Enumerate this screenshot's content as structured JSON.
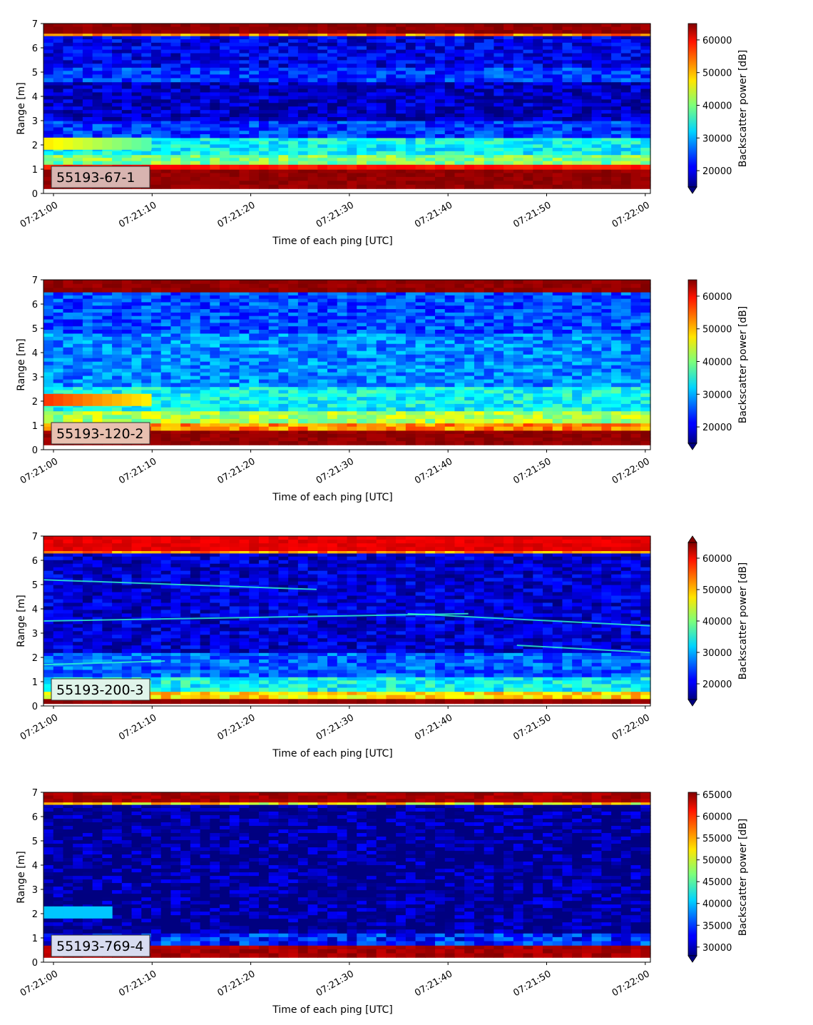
{
  "figure": {
    "panel_count": 4
  },
  "chart_data": [
    {
      "type": "heatmap",
      "id_label": "55193-67-1",
      "label_box_color": "#d8b4b0",
      "xlabel": "Time of each ping [UTC]",
      "ylabel": "Range [m]",
      "x_range": [
        "07:20:59",
        "07:22:00.5"
      ],
      "x_ticks": [
        "07:21:00",
        "07:21:10",
        "07:21:20",
        "07:21:30",
        "07:21:40",
        "07:21:50",
        "07:22:00"
      ],
      "ylim": [
        0,
        7
      ],
      "y_ticks": [
        "0",
        "1",
        "2",
        "3",
        "4",
        "5",
        "6",
        "7"
      ],
      "colorbar": {
        "label": "Backscatter power [dB]",
        "vmin": 15000,
        "vmax": 65000,
        "ticks": [
          "20000",
          "30000",
          "40000",
          "50000",
          "60000"
        ],
        "tick_values": [
          20000,
          30000,
          40000,
          50000,
          60000
        ],
        "extend": "min",
        "colormap": "jet"
      },
      "range_profile": [
        {
          "range": [
            0.0,
            0.2
          ],
          "value": "#ffffff"
        },
        {
          "range": [
            0.2,
            1.0
          ],
          "value": 64000
        },
        {
          "range": [
            1.0,
            1.2
          ],
          "value": 58000
        },
        {
          "range": [
            1.2,
            1.6
          ],
          "value": 40000
        },
        {
          "range": [
            1.6,
            2.3
          ],
          "value": 34000
        },
        {
          "range": [
            2.3,
            3.0
          ],
          "value": 24000
        },
        {
          "range": [
            3.0,
            4.6
          ],
          "value": 18000
        },
        {
          "range": [
            4.6,
            5.2
          ],
          "value": 24000
        },
        {
          "range": [
            5.2,
            6.5
          ],
          "value": 20000
        },
        {
          "range": [
            6.5,
            6.6
          ],
          "value": 52000
        },
        {
          "range": [
            6.6,
            7.0
          ],
          "value": 64000
        }
      ],
      "features": [
        "Strong echo band near 2 m from 07:21:00 to about 07:21:10"
      ]
    },
    {
      "type": "heatmap",
      "id_label": "55193-120-2",
      "label_box_color": "#e8c0b0",
      "xlabel": "Time of each ping [UTC]",
      "ylabel": "Range [m]",
      "x_range": [
        "07:20:59",
        "07:22:00.5"
      ],
      "x_ticks": [
        "07:21:00",
        "07:21:10",
        "07:21:20",
        "07:21:30",
        "07:21:40",
        "07:21:50",
        "07:22:00"
      ],
      "ylim": [
        0,
        7
      ],
      "y_ticks": [
        "0",
        "1",
        "2",
        "3",
        "4",
        "5",
        "6",
        "7"
      ],
      "colorbar": {
        "label": "Backscatter power [dB]",
        "vmin": 15000,
        "vmax": 65000,
        "ticks": [
          "20000",
          "30000",
          "40000",
          "50000",
          "60000"
        ],
        "tick_values": [
          20000,
          30000,
          40000,
          50000,
          60000
        ],
        "extend": "min",
        "colormap": "jet"
      },
      "range_profile": [
        {
          "range": [
            0.0,
            0.2
          ],
          "value": "#ffffff"
        },
        {
          "range": [
            0.2,
            0.8
          ],
          "value": 64000
        },
        {
          "range": [
            0.8,
            1.1
          ],
          "value": 52000
        },
        {
          "range": [
            1.1,
            1.6
          ],
          "value": 42000
        },
        {
          "range": [
            1.6,
            2.6
          ],
          "value": 34000
        },
        {
          "range": [
            2.6,
            4.8
          ],
          "value": 28000
        },
        {
          "range": [
            4.8,
            6.5
          ],
          "value": 25000
        },
        {
          "range": [
            6.5,
            7.0
          ],
          "value": 64000
        }
      ],
      "features": [
        "Strong echo band near 2 m from 07:21:00 to about 07:21:10"
      ]
    },
    {
      "type": "heatmap",
      "id_label": "55193-200-3",
      "label_box_color": "#e0f4ea",
      "xlabel": "Time of each ping [UTC]",
      "ylabel": "Range [m]",
      "x_range": [
        "07:20:59",
        "07:22:00.5"
      ],
      "x_ticks": [
        "07:21:00",
        "07:21:10",
        "07:21:20",
        "07:21:30",
        "07:21:40",
        "07:21:50",
        "07:22:00"
      ],
      "ylim": [
        0,
        7
      ],
      "y_ticks": [
        "0",
        "1",
        "2",
        "3",
        "4",
        "5",
        "6",
        "7"
      ],
      "colorbar": {
        "label": "Backscatter power [dB]",
        "vmin": 15000,
        "vmax": 65000,
        "ticks": [
          "20000",
          "30000",
          "40000",
          "50000",
          "60000"
        ],
        "tick_values": [
          20000,
          30000,
          40000,
          50000,
          60000
        ],
        "extend": "both",
        "colormap": "jet"
      },
      "range_profile": [
        {
          "range": [
            0.0,
            0.1
          ],
          "value": "#ffffff"
        },
        {
          "range": [
            0.1,
            0.3
          ],
          "value": 64000
        },
        {
          "range": [
            0.3,
            0.6
          ],
          "value": 48000
        },
        {
          "range": [
            0.6,
            1.2
          ],
          "value": 34000
        },
        {
          "range": [
            1.2,
            2.2
          ],
          "value": 26000
        },
        {
          "range": [
            2.2,
            6.3
          ],
          "value": 19000
        },
        {
          "range": [
            6.3,
            6.4
          ],
          "value": 52000
        },
        {
          "range": [
            6.4,
            7.0
          ],
          "value": 60000
        }
      ],
      "features": [
        "Faint target traces near 5 m, 3.5 m and 2 m"
      ]
    },
    {
      "type": "heatmap",
      "id_label": "55193-769-4",
      "label_box_color": "#d8dcf0",
      "xlabel": "Time of each ping [UTC]",
      "ylabel": "Range [m]",
      "x_range": [
        "07:20:59",
        "07:22:00.5"
      ],
      "x_ticks": [
        "07:21:00",
        "07:21:10",
        "07:21:20",
        "07:21:30",
        "07:21:40",
        "07:21:50",
        "07:22:00"
      ],
      "ylim": [
        0,
        7
      ],
      "y_ticks": [
        "0",
        "1",
        "2",
        "3",
        "4",
        "5",
        "6",
        "7"
      ],
      "colorbar": {
        "label": "Backscatter power [dB]",
        "vmin": 28000,
        "vmax": 65500,
        "ticks": [
          "30000",
          "35000",
          "40000",
          "45000",
          "50000",
          "55000",
          "60000",
          "65000"
        ],
        "tick_values": [
          30000,
          35000,
          40000,
          45000,
          50000,
          55000,
          60000,
          65000
        ],
        "extend": "min",
        "colormap": "jet"
      },
      "range_profile": [
        {
          "range": [
            0.0,
            0.2
          ],
          "value": "#ffffff"
        },
        {
          "range": [
            0.2,
            0.7
          ],
          "value": 64000
        },
        {
          "range": [
            0.7,
            1.2
          ],
          "value": 34000
        },
        {
          "range": [
            1.2,
            6.5
          ],
          "value": 28500
        },
        {
          "range": [
            6.5,
            6.6
          ],
          "value": 52000
        },
        {
          "range": [
            6.6,
            7.0
          ],
          "value": 64000
        }
      ],
      "features": [
        "Echo band near 2 m from 07:21:00 to about 07:21:05"
      ]
    }
  ]
}
